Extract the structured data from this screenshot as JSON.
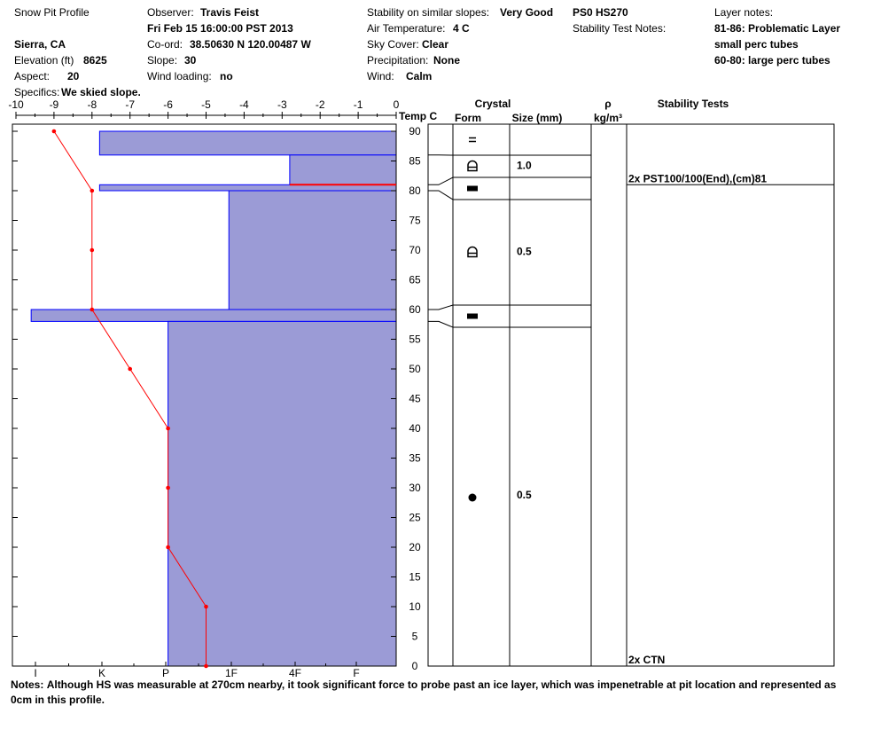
{
  "header": {
    "title": "Snow Pit Profile",
    "location": "Sierra, CA",
    "elevation_label": "Elevation (ft)",
    "elevation_value": "8625",
    "aspect_label": "Aspect:",
    "aspect_value": "20",
    "specifics_label": "Specifics:",
    "specifics_value": "We skied slope.",
    "observer_label": "Observer:",
    "observer_value": "Travis Feist",
    "datetime": "Fri Feb 15 16:00:00 PST 2013",
    "coord_label": "Co-ord:",
    "coord_value": "38.50630 N 120.00487 W",
    "slope_label": "Slope:",
    "slope_value": "30",
    "wind_loading_label": "Wind loading:",
    "wind_loading_value": "no",
    "stability_label": "Stability on similar slopes:",
    "stability_value": "Very Good",
    "air_temp_label": "Air Temperature:",
    "air_temp_value": "4 C",
    "sky_label": "Sky Cover:",
    "sky_value": "Clear",
    "precip_label": "Precipitation:",
    "precip_value": "None",
    "wind_label": "Wind:",
    "wind_value": "Calm",
    "ps_hs": "PS0 HS270",
    "stability_notes_label": "Stability Test Notes:",
    "layer_notes_label": "Layer notes:",
    "layer_notes": [
      "81-86: Problematic Layer",
      "small perc tubes",
      "60-80: large perc tubes"
    ]
  },
  "columns": {
    "crystal": "Crystal",
    "form": "Form",
    "size": "Size (mm)",
    "rho": "ρ",
    "density_unit": "kg/m³",
    "stability_tests": "Stability Tests",
    "temp": "Temp C"
  },
  "notes": {
    "label": "Notes:",
    "text": "Although HS was measurable at 270cm nearby, it took significant force to probe past an ice layer, which was impenetrable at pit location and represented as 0cm in this profile."
  },
  "colors": {
    "hardness_fill": "#9b9bd6",
    "hardness_stroke": "#0000ff",
    "temp_line": "#ff0000"
  },
  "chart_data": {
    "type": "snow-profile",
    "depth_axis": {
      "label": "",
      "range": [
        0,
        90
      ],
      "ticks": [
        0,
        5,
        10,
        15,
        20,
        25,
        30,
        35,
        40,
        45,
        50,
        55,
        60,
        65,
        70,
        75,
        80,
        85,
        90
      ]
    },
    "temp_axis": {
      "label": "Temp C",
      "range": [
        -10,
        0
      ],
      "ticks": [
        -10,
        -9,
        -8,
        -7,
        -6,
        -5,
        -4,
        -3,
        -2,
        -1,
        0
      ]
    },
    "hardness_axis": {
      "labels": [
        "I",
        "K",
        "P",
        "1F",
        "4F",
        "F"
      ]
    },
    "hardness_layers": [
      {
        "top": 90,
        "bottom": 86,
        "temp_left": -7.8
      },
      {
        "top": 86,
        "bottom": 81,
        "temp_left": -2.8
      },
      {
        "top": 81,
        "bottom": 80,
        "temp_left": -7.8
      },
      {
        "top": 80,
        "bottom": 60,
        "temp_left": -4.4
      },
      {
        "top": 60,
        "bottom": 58,
        "temp_left": -9.6
      },
      {
        "top": 58,
        "bottom": 0,
        "temp_left": -6.0
      }
    ],
    "temperature_profile": [
      {
        "depth": 90,
        "temp": -9.0
      },
      {
        "depth": 80,
        "temp": -8.0
      },
      {
        "depth": 70,
        "temp": -8.0
      },
      {
        "depth": 60,
        "temp": -8.0
      },
      {
        "depth": 50,
        "temp": -7.0
      },
      {
        "depth": 40,
        "temp": -6.0
      },
      {
        "depth": 30,
        "temp": -6.0
      },
      {
        "depth": 20,
        "temp": -6.0
      },
      {
        "depth": 10,
        "temp": -5.0
      },
      {
        "depth": 0,
        "temp": -5.0
      }
    ],
    "problem_layer_depth": 81,
    "crystal_layers": [
      {
        "top": 90,
        "bottom": 86,
        "form": "=",
        "size": ""
      },
      {
        "top": 86,
        "bottom": 81,
        "form": "depth-hoar",
        "size": "1.0"
      },
      {
        "top": 81,
        "bottom": 80,
        "form": "ice",
        "size": ""
      },
      {
        "top": 80,
        "bottom": 60,
        "form": "depth-hoar",
        "size": "0.5"
      },
      {
        "top": 60,
        "bottom": 58,
        "form": "ice",
        "size": ""
      },
      {
        "top": 58,
        "bottom": 0,
        "form": "rounds",
        "size": "0.5"
      }
    ],
    "stability_tests": [
      {
        "depth": 81,
        "text": "2x PST100/100(End),(cm)81"
      },
      {
        "depth": 0,
        "text": "2x CTN"
      }
    ]
  }
}
